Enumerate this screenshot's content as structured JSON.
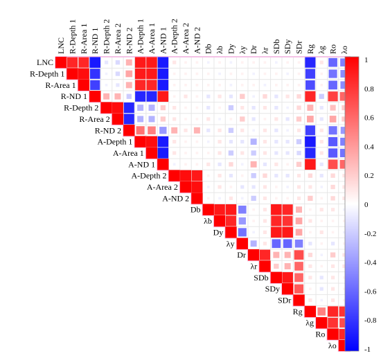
{
  "chart_data": {
    "type": "heatmap",
    "title": "",
    "variables": [
      "LNC",
      "R-Depth 1",
      "R-Area 1",
      "R-ND 1",
      "R-Depth 2",
      "R-Area 2",
      "R-ND 2",
      "A-Depth 1",
      "A-Area 1",
      "A-ND 1",
      "A-Depth 2",
      "A-Area 2",
      "A-ND 2",
      "Db",
      "λb",
      "Dy",
      "λy",
      "Dr",
      "λr",
      "SDb",
      "SDy",
      "SDr",
      "Rg",
      "λg",
      "Ro",
      "λo"
    ],
    "matrix": [
      [
        1,
        0.85,
        0.85,
        -0.9,
        -0.1,
        -0.15,
        0.3,
        0.9,
        0.9,
        -0.9,
        0.1,
        0.05,
        0.05,
        -0.05,
        0.05,
        -0.05,
        0.05,
        0.05,
        0.05,
        -0.05,
        0.05,
        0.05,
        -0.85,
        0.1,
        -0.6,
        -0.5
      ],
      [
        0,
        1,
        0.95,
        -0.8,
        -0.05,
        -0.15,
        0.35,
        0.9,
        0.9,
        -0.9,
        0.05,
        0.05,
        0.05,
        0.05,
        -0.05,
        0.05,
        0.05,
        -0.05,
        0.05,
        0.05,
        -0.05,
        0.05,
        -0.75,
        0.05,
        -0.55,
        -0.45
      ],
      [
        0,
        0,
        1,
        -0.75,
        -0.05,
        -0.1,
        0.3,
        0.85,
        0.85,
        -0.9,
        0.05,
        0.05,
        0.05,
        0.05,
        0.05,
        -0.05,
        0.05,
        0.05,
        -0.05,
        0.05,
        0.05,
        0.05,
        -0.7,
        0.05,
        -0.6,
        -0.45
      ],
      [
        0,
        0,
        0,
        1,
        0.3,
        0.3,
        -0.2,
        -0.85,
        -0.85,
        0.9,
        0.05,
        0.1,
        0.05,
        -0.1,
        0.1,
        -0.1,
        0.2,
        -0.05,
        0.15,
        -0.1,
        0.1,
        0.15,
        0.85,
        -0.2,
        0.75,
        0.6
      ],
      [
        0,
        0,
        0,
        0,
        1,
        0.95,
        -0.85,
        -0.3,
        -0.3,
        0.2,
        0.1,
        0.05,
        0.05,
        -0.1,
        0.05,
        -0.2,
        0.1,
        -0.1,
        0.1,
        -0.1,
        -0.05,
        0.15,
        0.3,
        -0.1,
        0.25,
        0.2
      ],
      [
        0,
        0,
        0,
        0,
        0,
        1,
        -0.85,
        -0.3,
        -0.3,
        0.2,
        0.1,
        0.05,
        0.05,
        0.1,
        -0.05,
        0.05,
        0.2,
        -0.1,
        0.05,
        0.1,
        -0.1,
        0.2,
        0.35,
        -0.1,
        0.35,
        0.2
      ],
      [
        0,
        0,
        0,
        0,
        0,
        0,
        1,
        0.55,
        0.5,
        -0.4,
        0.3,
        0.1,
        0.3,
        -0.1,
        0.1,
        -0.2,
        0.1,
        -0.05,
        0.1,
        -0.1,
        -0.05,
        0.1,
        -0.75,
        0.1,
        -0.55,
        -0.4
      ],
      [
        0,
        0,
        0,
        0,
        0,
        0,
        0,
        1,
        0.95,
        -0.9,
        0.1,
        0.05,
        0.05,
        -0.05,
        0.1,
        -0.1,
        -0.1,
        -0.3,
        0.1,
        -0.1,
        -0.1,
        -0.2,
        -0.9,
        0.1,
        -0.65,
        -0.5
      ],
      [
        0,
        0,
        0,
        0,
        0,
        0,
        0,
        0,
        1,
        -0.9,
        0.1,
        0.05,
        0.05,
        0.05,
        0.1,
        -0.2,
        0.1,
        -0.2,
        0.1,
        -0.1,
        -0.1,
        -0.15,
        -0.85,
        0.1,
        -0.65,
        -0.55
      ],
      [
        0,
        0,
        0,
        0,
        0,
        0,
        0,
        0,
        0,
        1,
        -0.05,
        0.05,
        0.05,
        0.1,
        -0.1,
        0.15,
        -0.05,
        0.3,
        -0.1,
        0.1,
        0.05,
        0.2,
        0.9,
        -0.1,
        0.7,
        0.6
      ],
      [
        0,
        0,
        0,
        0,
        0,
        0,
        0,
        0,
        0,
        0,
        1,
        0.95,
        0.9,
        0.05,
        0.1,
        -0.1,
        0.05,
        -0.2,
        0.15,
        -0.1,
        -0.1,
        0.1,
        0.15,
        -0.1,
        0.15,
        0.1
      ],
      [
        0,
        0,
        0,
        0,
        0,
        0,
        0,
        0,
        0,
        0,
        0,
        1,
        0.95,
        -0.05,
        0.1,
        0.05,
        -0.1,
        -0.1,
        0.1,
        0.05,
        -0.05,
        0.1,
        0.1,
        -0.05,
        0.15,
        0.1
      ],
      [
        0,
        0,
        0,
        0,
        0,
        0,
        0,
        0,
        0,
        0,
        0,
        0,
        1,
        0.05,
        -0.05,
        0.1,
        -0.05,
        -0.2,
        0.1,
        0.05,
        0.05,
        0.1,
        0.2,
        0.05,
        0.15,
        0.1
      ],
      [
        0,
        0,
        0,
        0,
        0,
        0,
        0,
        0,
        0,
        0,
        0,
        0,
        0,
        1,
        0.9,
        0.9,
        -0.5,
        0.05,
        0.1,
        0.9,
        0.85,
        0.3,
        0.05,
        0.1,
        0.1,
        -0.05
      ],
      [
        0,
        0,
        0,
        0,
        0,
        0,
        0,
        0,
        0,
        0,
        0,
        0,
        0,
        0,
        1,
        0.85,
        -0.4,
        0.05,
        0.1,
        0.85,
        0.8,
        0.35,
        0.1,
        0.05,
        0.05,
        0.05
      ],
      [
        0,
        0,
        0,
        0,
        0,
        0,
        0,
        0,
        0,
        0,
        0,
        0,
        0,
        0,
        0,
        1,
        -0.55,
        -0.05,
        0.1,
        0.9,
        0.9,
        0.35,
        0.05,
        0.1,
        0.05,
        -0.05
      ],
      [
        0,
        0,
        0,
        0,
        0,
        0,
        0,
        0,
        0,
        0,
        0,
        0,
        0,
        0,
        0,
        0,
        1,
        -0.3,
        0.1,
        -0.6,
        -0.6,
        -0.5,
        -0.1,
        0.05,
        -0.1,
        0.05
      ],
      [
        0,
        0,
        0,
        0,
        0,
        0,
        0,
        0,
        0,
        0,
        0,
        0,
        0,
        0,
        0,
        0,
        0,
        1,
        0.85,
        0.3,
        0.3,
        0.7,
        0.15,
        -0.05,
        0.2,
        0.1
      ],
      [
        0,
        0,
        0,
        0,
        0,
        0,
        0,
        0,
        0,
        0,
        0,
        0,
        0,
        0,
        0,
        0,
        0,
        0,
        1,
        0.2,
        0.3,
        0.6,
        0.1,
        0.05,
        0.1,
        0.1
      ],
      [
        0,
        0,
        0,
        0,
        0,
        0,
        0,
        0,
        0,
        0,
        0,
        0,
        0,
        0,
        0,
        0,
        0,
        0,
        0,
        1,
        0.9,
        0.6,
        0.1,
        -0.1,
        0.1,
        0.05
      ],
      [
        0,
        0,
        0,
        0,
        0,
        0,
        0,
        0,
        0,
        0,
        0,
        0,
        0,
        0,
        0,
        0,
        0,
        0,
        0,
        0,
        1,
        0.65,
        0.05,
        -0.1,
        0.1,
        0.05
      ],
      [
        0,
        0,
        0,
        0,
        0,
        0,
        0,
        0,
        0,
        0,
        0,
        0,
        0,
        0,
        0,
        0,
        0,
        0,
        0,
        0,
        0,
        1,
        0.1,
        -0.05,
        0.1,
        0.05
      ],
      [
        0,
        0,
        0,
        0,
        0,
        0,
        0,
        0,
        0,
        0,
        0,
        0,
        0,
        0,
        0,
        0,
        0,
        0,
        0,
        0,
        0,
        0,
        1,
        0.5,
        0.85,
        0.8
      ],
      [
        0,
        0,
        0,
        0,
        0,
        0,
        0,
        0,
        0,
        0,
        0,
        0,
        0,
        0,
        0,
        0,
        0,
        0,
        0,
        0,
        0,
        0,
        0,
        1,
        0.8,
        0.7
      ],
      [
        0,
        0,
        0,
        0,
        0,
        0,
        0,
        0,
        0,
        0,
        0,
        0,
        0,
        0,
        0,
        0,
        0,
        0,
        0,
        0,
        0,
        0,
        0,
        0,
        1,
        0.85
      ],
      [
        0,
        0,
        0,
        0,
        0,
        0,
        0,
        0,
        0,
        0,
        0,
        0,
        0,
        0,
        0,
        0,
        0,
        0,
        0,
        0,
        0,
        0,
        0,
        0,
        0,
        1
      ]
    ],
    "triangle": "upper",
    "colorbar": {
      "min": -1,
      "max": 1,
      "ticks": [
        "1",
        "0.8",
        "0.6",
        "0.4",
        "0.2",
        "0",
        "-0.2",
        "-0.4",
        "-0.6",
        "-0.8",
        "-1"
      ],
      "colors": [
        "#0000ff",
        "#ffffff",
        "#ff0000"
      ]
    },
    "grid": true
  }
}
